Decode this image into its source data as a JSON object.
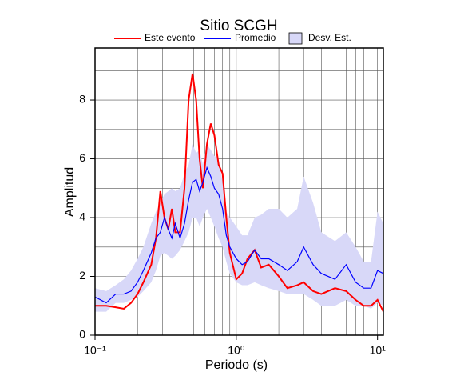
{
  "chart_data": {
    "type": "line",
    "title": "Sitio SCGH",
    "xlabel": "Periodo (s)",
    "ylabel": "Amplitud",
    "xscale": "log",
    "grid": true,
    "xlim": [
      0.1,
      11
    ],
    "ylim": [
      0,
      9.77
    ],
    "xticks": [
      {
        "value": 0.1,
        "label": "10⁻¹"
      },
      {
        "value": 1,
        "label": "10⁰"
      },
      {
        "value": 10,
        "label": "10¹"
      }
    ],
    "minor_xticks": [
      0.2,
      0.3,
      0.4,
      0.5,
      0.6,
      0.7,
      0.8,
      0.9,
      2,
      3,
      4,
      5,
      6,
      7,
      8,
      9
    ],
    "yticks": [
      0,
      2,
      4,
      6,
      8
    ],
    "minor_yticks": [
      1,
      3,
      5,
      7,
      9
    ],
    "x": [
      0.1,
      0.12,
      0.14,
      0.16,
      0.18,
      0.2,
      0.22,
      0.25,
      0.27,
      0.29,
      0.31,
      0.33,
      0.35,
      0.37,
      0.4,
      0.43,
      0.46,
      0.49,
      0.52,
      0.55,
      0.58,
      0.62,
      0.66,
      0.7,
      0.75,
      0.8,
      0.85,
      0.9,
      1.0,
      1.1,
      1.2,
      1.35,
      1.5,
      1.7,
      2.0,
      2.3,
      2.7,
      3.0,
      3.5,
      4.0,
      5.0,
      6.0,
      7.0,
      8.0,
      9.0,
      10,
      11
    ],
    "series": [
      {
        "name": "Este evento",
        "color": "#ff0000",
        "values": [
          1.0,
          1.0,
          0.95,
          0.9,
          1.1,
          1.4,
          1.8,
          2.4,
          3.3,
          4.9,
          4.0,
          3.6,
          4.3,
          3.5,
          3.5,
          5.0,
          8.0,
          8.9,
          8.0,
          6.0,
          5.0,
          6.5,
          7.2,
          6.8,
          5.8,
          5.5,
          4.0,
          2.8,
          1.9,
          2.1,
          2.6,
          2.9,
          2.3,
          2.4,
          2.0,
          1.6,
          1.7,
          1.8,
          1.5,
          1.4,
          1.6,
          1.5,
          1.2,
          1.0,
          1.0,
          1.2,
          0.8
        ]
      },
      {
        "name": "Promedio",
        "color": "#0000ff",
        "values": [
          1.3,
          1.1,
          1.4,
          1.4,
          1.5,
          1.8,
          2.2,
          2.8,
          3.3,
          3.5,
          4.0,
          3.6,
          3.3,
          3.8,
          3.3,
          3.8,
          4.6,
          5.2,
          5.3,
          4.9,
          5.2,
          5.7,
          5.4,
          5.0,
          4.8,
          4.3,
          3.4,
          3.0,
          2.6,
          2.4,
          2.5,
          2.9,
          2.6,
          2.6,
          2.4,
          2.2,
          2.5,
          3.0,
          2.4,
          2.1,
          1.9,
          2.4,
          1.8,
          1.6,
          1.6,
          2.2,
          2.1
        ]
      },
      {
        "name": "Desv. Est.",
        "color": "#d8d8f8",
        "lower": [
          0.8,
          0.8,
          1.1,
          1.1,
          1.2,
          1.3,
          1.5,
          1.8,
          2.2,
          2.7,
          2.8,
          2.7,
          2.6,
          2.7,
          2.9,
          3.2,
          3.5,
          4.0,
          4.0,
          3.7,
          4.0,
          4.3,
          4.0,
          3.7,
          3.3,
          3.0,
          2.5,
          2.1,
          1.8,
          1.7,
          1.7,
          1.8,
          1.7,
          1.6,
          1.5,
          1.4,
          1.4,
          1.4,
          1.2,
          1.0,
          1.0,
          1.2,
          1.0,
          1.0,
          0.9,
          1.1,
          1.0
        ],
        "upper": [
          1.6,
          1.5,
          1.7,
          1.9,
          2.2,
          2.6,
          3.0,
          3.8,
          4.2,
          4.5,
          4.8,
          4.9,
          5.0,
          4.9,
          5.0,
          5.5,
          5.8,
          6.5,
          6.2,
          6.3,
          5.8,
          6.5,
          6.3,
          6.1,
          6.0,
          5.2,
          4.2,
          4.0,
          3.7,
          3.4,
          3.4,
          4.0,
          4.1,
          4.3,
          4.3,
          4.0,
          4.3,
          5.4,
          4.5,
          3.5,
          3.2,
          3.5,
          3.0,
          2.5,
          2.5,
          4.2,
          3.8
        ]
      }
    ]
  }
}
